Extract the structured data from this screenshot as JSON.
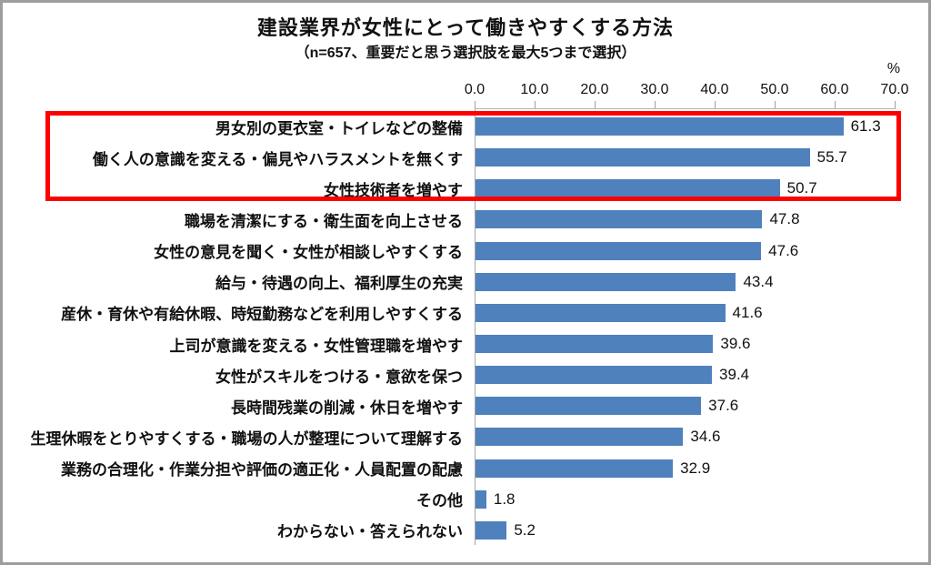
{
  "chart": {
    "title": "建設業界が女性にとって働きやすくする方法",
    "subtitle": "（n=657、重要だと思う選択肢を最大5つまで選択）",
    "unit_label": "%"
  },
  "chart_data": {
    "type": "bar",
    "orientation": "horizontal",
    "title": "建設業界が女性にとって働きやすくする方法",
    "subtitle": "（n=657、重要だと思う選択肢を最大5つまで選択）",
    "xlabel": "%",
    "ylabel": "",
    "xlim": [
      0,
      70
    ],
    "x_tick_labels": [
      "0.0",
      "10.0",
      "20.0",
      "30.0",
      "40.0",
      "50.0",
      "60.0",
      "70.0"
    ],
    "grid": false,
    "bar_color": "#4f81bd",
    "categories": [
      "男女別の更衣室・トイレなどの整備",
      "働く人の意識を変える・偏見やハラスメントを無くす",
      "女性技術者を増やす",
      "職場を清潔にする・衛生面を向上させる",
      "女性の意見を聞く・女性が相談しやすくする",
      "給与・待遇の向上、福利厚生の充実",
      "産休・育休や有給休暇、時短勤務などを利用しやすくする",
      "上司が意識を変える・女性管理職を増やす",
      "女性がスキルをつける・意欲を保つ",
      "長時間残業の削減・休日を増やす",
      "生理休暇をとりやすくする・職場の人が整理について理解する",
      "業務の合理化・作業分担や評価の適正化・人員配置の配慮",
      "その他",
      "わからない・答えられない"
    ],
    "values": [
      61.3,
      55.7,
      50.7,
      47.8,
      47.6,
      43.4,
      41.6,
      39.6,
      39.4,
      37.6,
      34.6,
      32.9,
      1.8,
      5.2
    ],
    "value_labels": [
      "61.3",
      "55.7",
      "50.7",
      "47.8",
      "47.6",
      "43.4",
      "41.6",
      "39.6",
      "39.4",
      "37.6",
      "34.6",
      "32.9",
      "1.8",
      "5.2"
    ],
    "highlight": {
      "rows": [
        0,
        1,
        2
      ],
      "color": "#fe0000",
      "style": "red-outline-box"
    }
  }
}
